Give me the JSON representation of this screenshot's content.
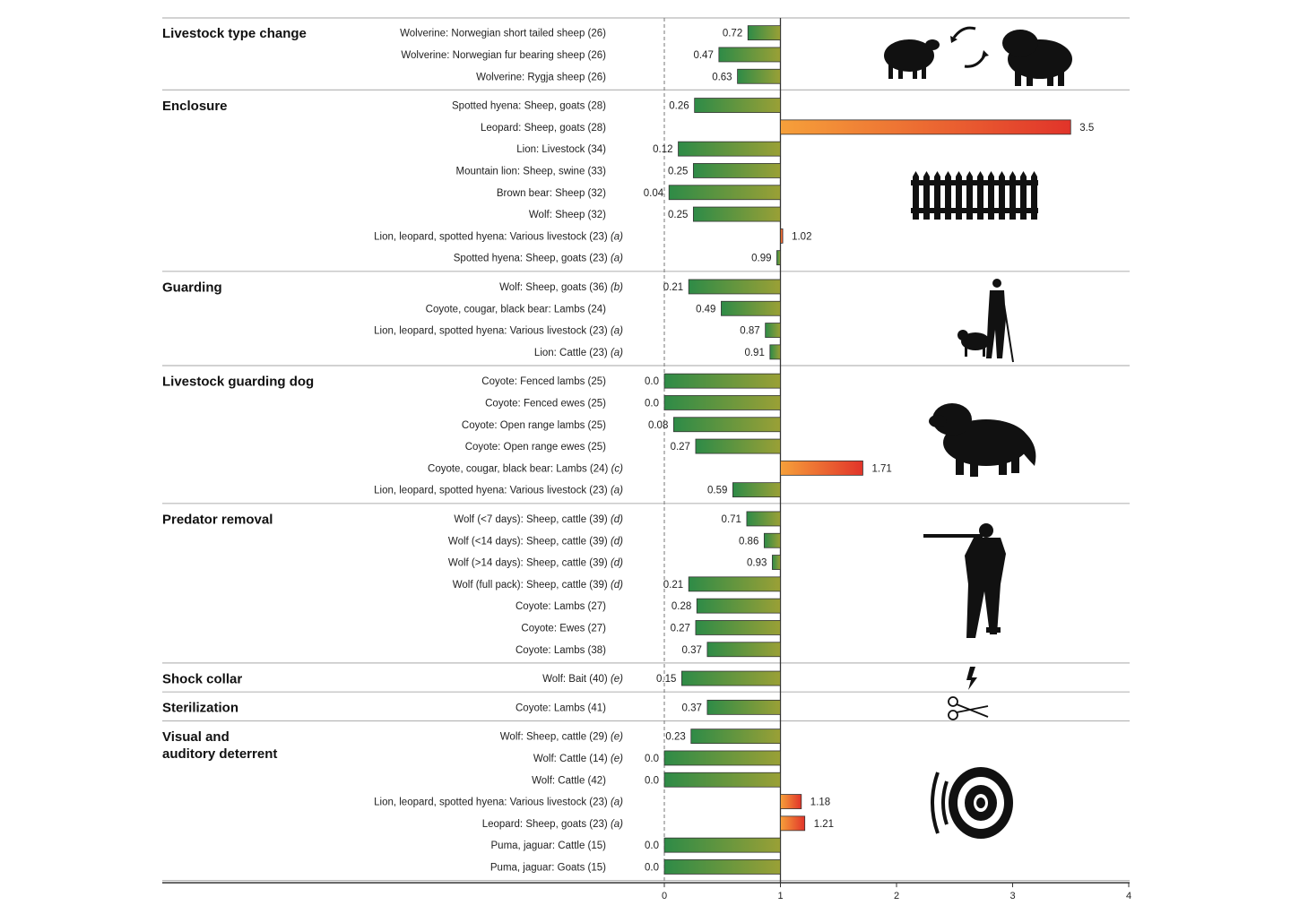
{
  "chart_data": {
    "type": "bar",
    "orientation": "horizontal",
    "xlim": [
      0,
      4
    ],
    "xticks": [
      "0",
      "1",
      "2",
      "3",
      "4"
    ],
    "reference_line": 1,
    "colors": {
      "below_one": [
        "#2e8b47",
        "#9aa036"
      ],
      "above_one": [
        "#f6a03a",
        "#e1342a"
      ]
    },
    "groups": [
      {
        "name": "Livestock type change",
        "icon": "sheep-swap-icon",
        "items": [
          {
            "label": "Wolverine: Norwegian short tailed sheep (26)",
            "note": "",
            "value": 0.72,
            "value_label": "0.72"
          },
          {
            "label": "Wolverine: Norwegian fur bearing sheep (26)",
            "note": "",
            "value": 0.47,
            "value_label": "0.47"
          },
          {
            "label": "Wolverine: Rygja sheep (26)",
            "note": "",
            "value": 0.63,
            "value_label": "0.63"
          }
        ]
      },
      {
        "name": "Enclosure",
        "icon": "fence-icon",
        "items": [
          {
            "label": "Spotted hyena: Sheep, goats (28)",
            "note": "",
            "value": 0.26,
            "value_label": "0.26"
          },
          {
            "label": "Leopard: Sheep, goats (28)",
            "note": "",
            "value": 3.5,
            "value_label": "3.5"
          },
          {
            "label": "Lion: Livestock (34)",
            "note": "",
            "value": 0.12,
            "value_label": "0.12"
          },
          {
            "label": "Mountain lion: Sheep, swine (33)",
            "note": "",
            "value": 0.25,
            "value_label": "0.25"
          },
          {
            "label": "Brown bear: Sheep (32)",
            "note": "",
            "value": 0.04,
            "value_label": "0.04"
          },
          {
            "label": "Wolf: Sheep (32)",
            "note": "",
            "value": 0.25,
            "value_label": "0.25"
          },
          {
            "label": "Lion, leopard, spotted hyena: Various livestock (23)",
            "note": "(a)",
            "value": 1.02,
            "value_label": "1.02"
          },
          {
            "label": "Spotted hyena: Sheep, goats (23)",
            "note": "(a)",
            "value": 0.99,
            "value_label": "0.99"
          }
        ]
      },
      {
        "name": "Guarding",
        "icon": "shepherd-icon",
        "items": [
          {
            "label": "Wolf: Sheep, goats (36)",
            "note": "(b)",
            "value": 0.21,
            "value_label": "0.21"
          },
          {
            "label": "Coyote, cougar, black bear: Lambs (24)",
            "note": "",
            "value": 0.49,
            "value_label": "0.49"
          },
          {
            "label": "Lion, leopard, spotted hyena: Various livestock (23)",
            "note": "(a)",
            "value": 0.87,
            "value_label": "0.87"
          },
          {
            "label": "Lion: Cattle (23)",
            "note": "(a)",
            "value": 0.91,
            "value_label": "0.91"
          }
        ]
      },
      {
        "name": "Livestock guarding dog",
        "icon": "dog-icon",
        "items": [
          {
            "label": "Coyote: Fenced lambs (25)",
            "note": "",
            "value": 0.0,
            "value_label": "0.0"
          },
          {
            "label": "Coyote: Fenced ewes (25)",
            "note": "",
            "value": 0.0,
            "value_label": "0.0"
          },
          {
            "label": "Coyote: Open range lambs (25)",
            "note": "",
            "value": 0.08,
            "value_label": "0.08"
          },
          {
            "label": "Coyote: Open range ewes (25)",
            "note": "",
            "value": 0.27,
            "value_label": "0.27"
          },
          {
            "label": "Coyote, cougar, black bear: Lambs (24)",
            "note": "(c)",
            "value": 1.71,
            "value_label": "1.71"
          },
          {
            "label": "Lion, leopard, spotted hyena: Various livestock (23)",
            "note": "(a)",
            "value": 0.59,
            "value_label": "0.59"
          }
        ]
      },
      {
        "name": "Predator removal",
        "icon": "hunter-icon",
        "items": [
          {
            "label": "Wolf (<7 days): Sheep, cattle (39)",
            "note": "(d)",
            "value": 0.71,
            "value_label": "0.71"
          },
          {
            "label": "Wolf (<14 days): Sheep, cattle (39)",
            "note": "(d)",
            "value": 0.86,
            "value_label": "0.86"
          },
          {
            "label": "Wolf (>14 days): Sheep, cattle (39)",
            "note": "(d)",
            "value": 0.93,
            "value_label": "0.93"
          },
          {
            "label": "Wolf (full pack): Sheep, cattle (39)",
            "note": "(d)",
            "value": 0.21,
            "value_label": "0.21"
          },
          {
            "label": "Coyote: Lambs (27)",
            "note": "",
            "value": 0.28,
            "value_label": "0.28"
          },
          {
            "label": "Coyote: Ewes (27)",
            "note": "",
            "value": 0.27,
            "value_label": "0.27"
          },
          {
            "label": "Coyote: Lambs (38)",
            "note": "",
            "value": 0.37,
            "value_label": "0.37"
          }
        ]
      },
      {
        "name": "Shock collar",
        "icon": "lightning-icon",
        "items": [
          {
            "label": "Wolf: Bait (40)",
            "note": "(e)",
            "value": 0.15,
            "value_label": "0.15"
          }
        ]
      },
      {
        "name": "Sterilization",
        "icon": "scissors-icon",
        "items": [
          {
            "label": "Coyote: Lambs (41)",
            "note": "",
            "value": 0.37,
            "value_label": "0.37"
          }
        ]
      },
      {
        "name": "Visual and auditory deterrent",
        "name_lines": [
          "Visual and",
          "auditory deterrent"
        ],
        "icon": "speaker-icon",
        "items": [
          {
            "label": "Wolf: Sheep, cattle (29)",
            "note": "(e)",
            "value": 0.23,
            "value_label": "0.23"
          },
          {
            "label": "Wolf: Cattle (14)",
            "note": "(e)",
            "value": 0.0,
            "value_label": "0.0"
          },
          {
            "label": "Wolf: Cattle (42)",
            "note": "",
            "value": 0.0,
            "value_label": "0.0"
          },
          {
            "label": "Lion, leopard, spotted hyena: Various livestock (23)",
            "note": "(a)",
            "value": 1.18,
            "value_label": "1.18"
          },
          {
            "label": "Leopard: Sheep, goats (23)",
            "note": "(a)",
            "value": 1.21,
            "value_label": "1.21"
          },
          {
            "label": "Puma, jaguar: Cattle (15)",
            "note": "",
            "value": 0.0,
            "value_label": "0.0"
          },
          {
            "label": "Puma, jaguar: Goats (15)",
            "note": "",
            "value": 0.0,
            "value_label": "0.0"
          }
        ]
      }
    ]
  }
}
